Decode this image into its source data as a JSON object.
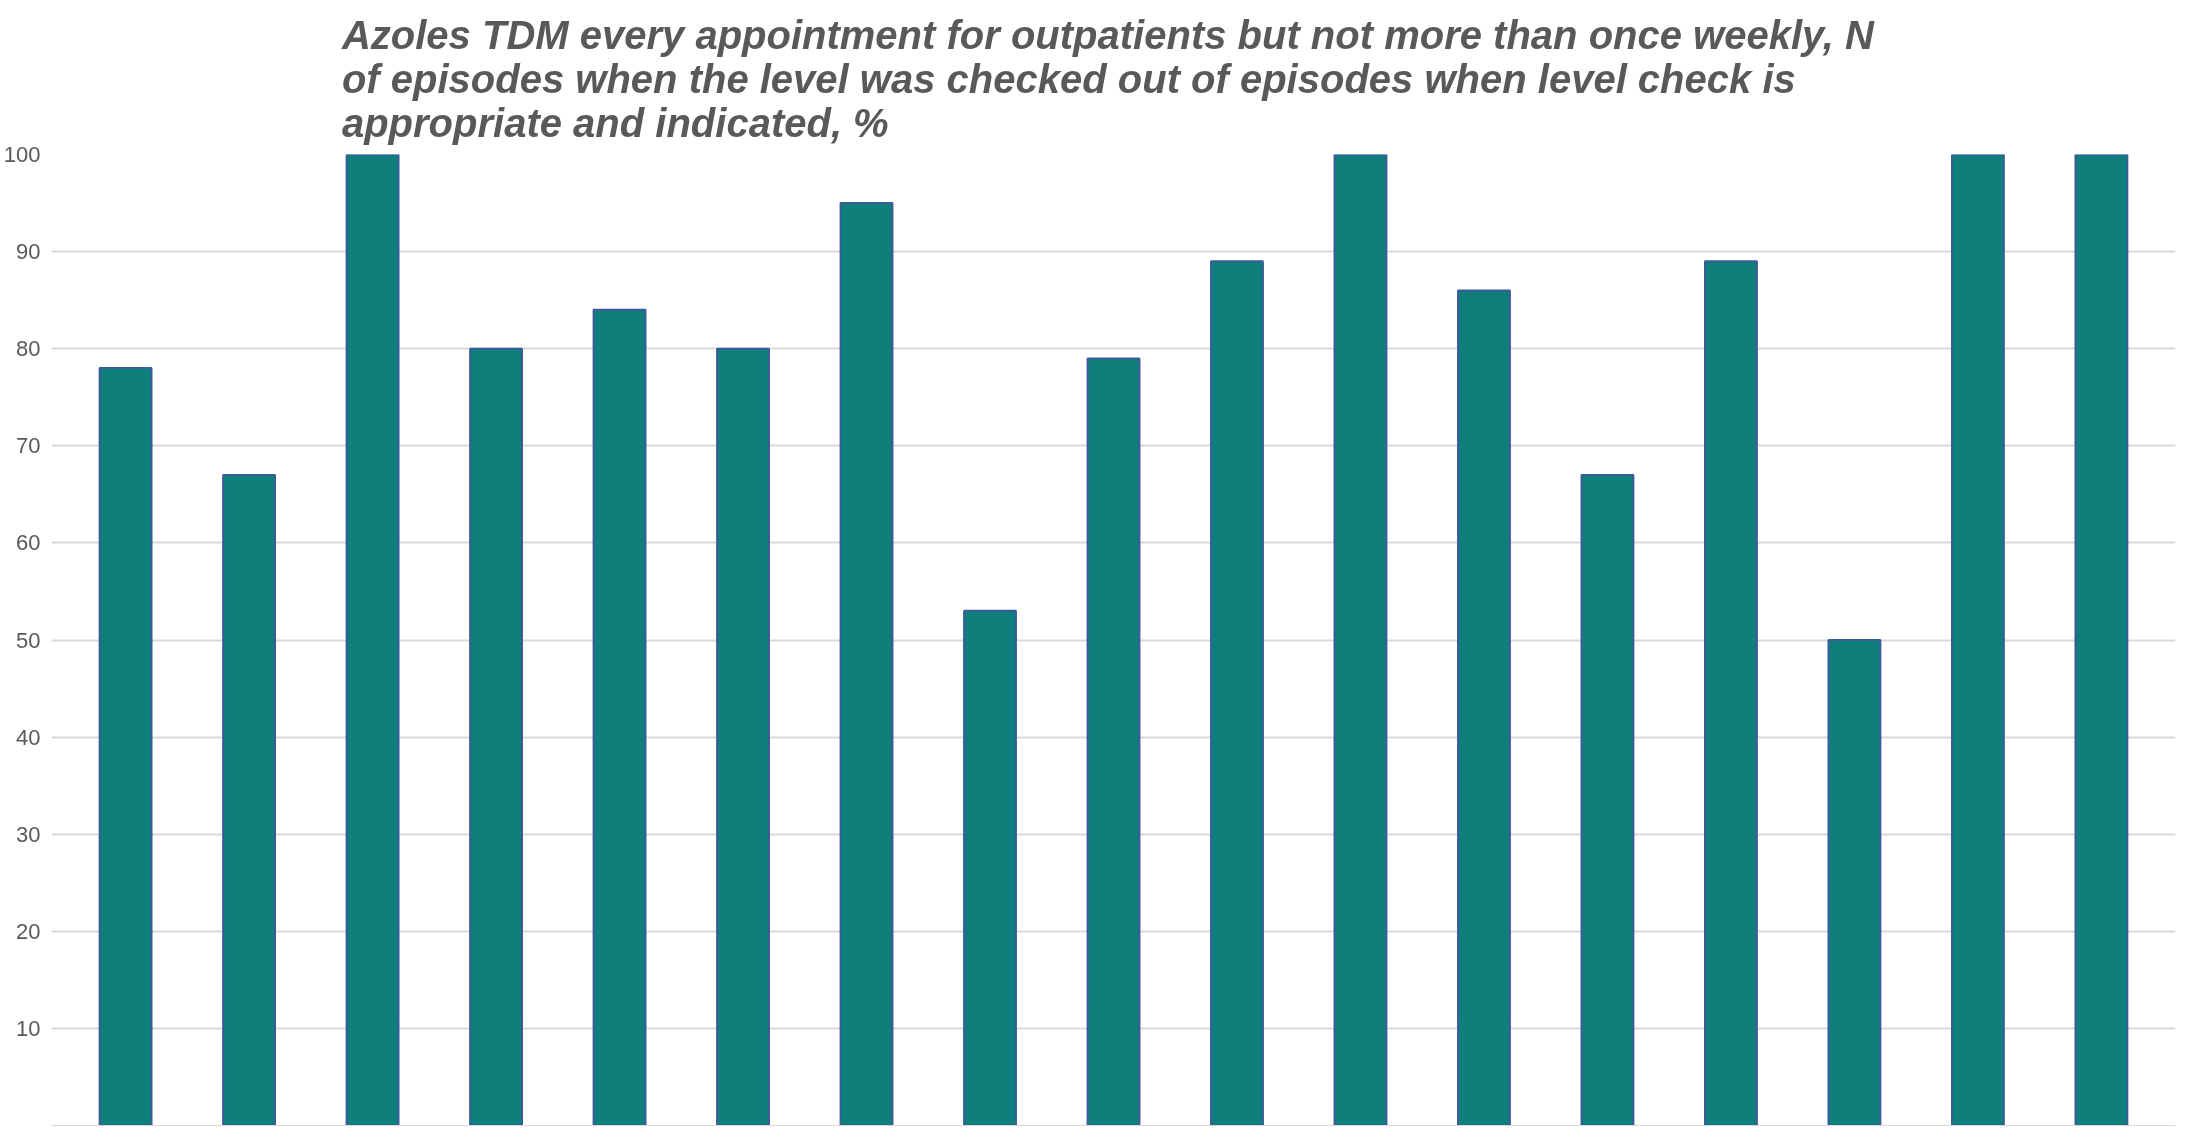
{
  "chart_data": {
    "type": "bar",
    "title": "Azoles TDM every appointment for outpatients but not more than once weekly,  N of episodes when the level was checked out of episodes when level check is appropriate and indicated,  %",
    "categories": [
      null,
      null,
      null,
      null,
      null,
      null,
      null,
      null,
      null,
      null,
      null,
      null,
      null,
      null,
      null,
      null,
      null
    ],
    "values": [
      78,
      67,
      100,
      80,
      84,
      80,
      95,
      53,
      79,
      89,
      100,
      86,
      67,
      89,
      50,
      100,
      100
    ],
    "color": "#0f7f7c",
    "ylim": [
      0,
      100
    ],
    "yticks": [
      10,
      20,
      30,
      40,
      50,
      60,
      70,
      80,
      90,
      100
    ],
    "grid": "y"
  }
}
